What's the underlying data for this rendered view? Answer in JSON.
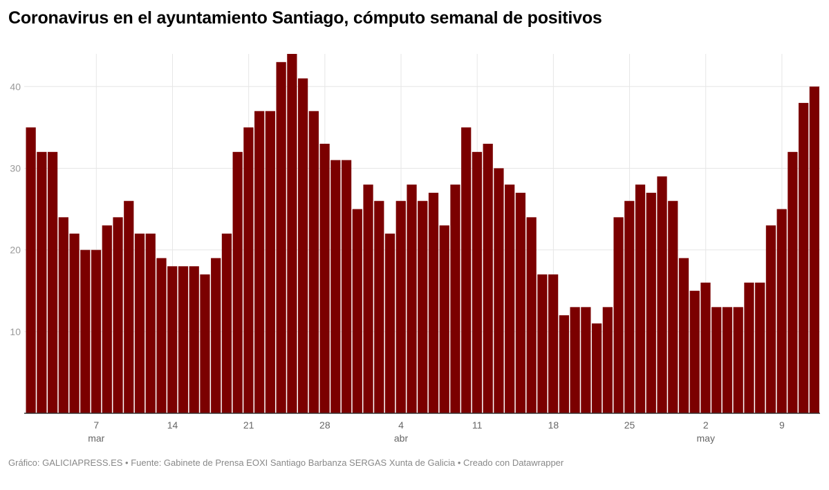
{
  "title": "Coronavirus en el ayuntamiento Santiago, cómputo semanal de positivos",
  "footer": "Gráfico: GALICIAPRESS.ES • Fuente: Gabinete de Prensa EOXI Santiago Barbanza SERGAS Xunta de Galicia • Creado con Datawrapper",
  "chart_data": {
    "type": "bar",
    "title": "Coronavirus en el ayuntamiento Santiago, cómputo semanal de positivos",
    "xlabel": "",
    "ylabel": "",
    "color": "#7b0000",
    "grid": true,
    "ylim": [
      0,
      44
    ],
    "yticks": [
      10,
      20,
      30,
      40
    ],
    "x_start": "1 mar",
    "x_end": "12 may",
    "xticks": [
      {
        "index": 6,
        "label": "7",
        "month": "mar"
      },
      {
        "index": 13,
        "label": "14",
        "month": ""
      },
      {
        "index": 20,
        "label": "21",
        "month": ""
      },
      {
        "index": 27,
        "label": "28",
        "month": ""
      },
      {
        "index": 34,
        "label": "4",
        "month": "abr"
      },
      {
        "index": 41,
        "label": "11",
        "month": ""
      },
      {
        "index": 48,
        "label": "18",
        "month": ""
      },
      {
        "index": 55,
        "label": "25",
        "month": ""
      },
      {
        "index": 62,
        "label": "2",
        "month": "may"
      },
      {
        "index": 69,
        "label": "9",
        "month": ""
      }
    ],
    "values": [
      35,
      32,
      32,
      24,
      22,
      20,
      20,
      23,
      24,
      26,
      22,
      22,
      19,
      18,
      18,
      18,
      17,
      19,
      22,
      32,
      35,
      37,
      37,
      43,
      44,
      41,
      37,
      33,
      31,
      31,
      25,
      28,
      26,
      22,
      26,
      28,
      26,
      27,
      23,
      28,
      35,
      32,
      33,
      30,
      28,
      27,
      24,
      17,
      17,
      12,
      13,
      13,
      11,
      13,
      24,
      26,
      28,
      27,
      29,
      26,
      19,
      15,
      16,
      13,
      13,
      13,
      16,
      16,
      23,
      25,
      32,
      38,
      40
    ]
  }
}
